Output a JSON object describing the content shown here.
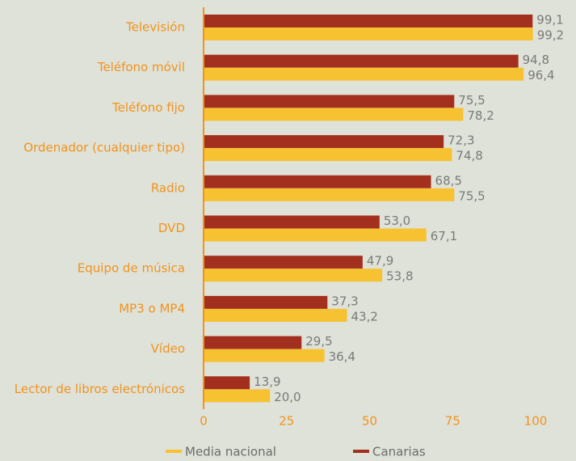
{
  "chart_data": {
    "type": "bar",
    "orientation": "horizontal",
    "categories": [
      "Televisión",
      "Teléfono móvil",
      "Teléfono fijo",
      "Ordenador (cualquier tipo)",
      "Radio",
      "DVD",
      "Equipo de música",
      "MP3 o MP4",
      "Vídeo",
      "Lector de libros electrónicos"
    ],
    "series": [
      {
        "name": "Canarias",
        "color": "#a3301e",
        "values": [
          99.1,
          94.8,
          75.5,
          72.3,
          68.5,
          53.0,
          47.9,
          37.3,
          29.5,
          13.9
        ],
        "value_labels": [
          "99,1",
          "94,8",
          "75,5",
          "72,3",
          "68,5",
          "53,0",
          "47,9",
          "37,3",
          "29,5",
          "13,9"
        ]
      },
      {
        "name": "Media nacional",
        "color": "#f6c232",
        "values": [
          99.2,
          96.4,
          78.2,
          74.8,
          75.5,
          67.1,
          53.8,
          43.2,
          36.4,
          20.0
        ],
        "value_labels": [
          "99,2",
          "96,4",
          "78,2",
          "74,8",
          "75,5",
          "67,1",
          "53,8",
          "43,2",
          "36,4",
          "20,0"
        ]
      }
    ],
    "xlim": [
      0,
      100
    ],
    "xticks": [
      0,
      25,
      50,
      75,
      100
    ]
  }
}
